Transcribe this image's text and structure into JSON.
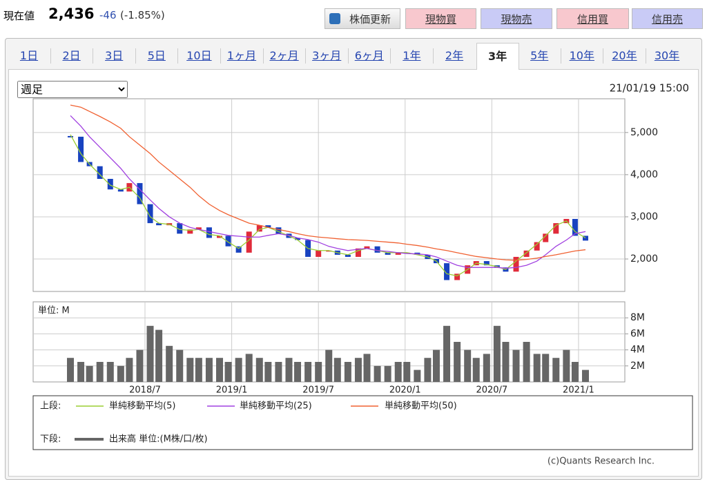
{
  "header": {
    "label": "現在値",
    "price": "2,436",
    "change": "-46",
    "change_pct": "(-1.85%)",
    "buttons": [
      "株価更新",
      "現物買",
      "現物売",
      "信用買",
      "信用売"
    ]
  },
  "tabs": {
    "items": [
      "1日",
      "2日",
      "3日",
      "5日",
      "10日",
      "1ヶ月",
      "2ヶ月",
      "3ヶ月",
      "6ヶ月",
      "1年",
      "2年",
      "3年",
      "5年",
      "10年",
      "20年",
      "30年"
    ],
    "active": 11
  },
  "select": "週足",
  "chart_data": {
    "type": "stock",
    "timestamp": "21/01/19 15:00",
    "credit": "(c)Quants Research Inc.",
    "xlim": [
      2017.855,
      2021.267
    ],
    "xticks": [
      {
        "value": 2018.5,
        "label": "2018/7"
      },
      {
        "value": 2019.0,
        "label": "2019/1"
      },
      {
        "value": 2019.5,
        "label": "2019/7"
      },
      {
        "value": 2020.0,
        "label": "2020/1"
      },
      {
        "value": 2020.5,
        "label": "2020/7"
      },
      {
        "value": 2021.0,
        "label": "2021/1"
      }
    ],
    "x": [
      2018.07,
      2018.13,
      2018.18,
      2018.24,
      2018.3,
      2018.36,
      2018.41,
      2018.47,
      2018.53,
      2018.58,
      2018.64,
      2018.7,
      2018.76,
      2018.81,
      2018.87,
      2018.93,
      2018.98,
      2019.04,
      2019.1,
      2019.16,
      2019.21,
      2019.27,
      2019.33,
      2019.38,
      2019.44,
      2019.5,
      2019.56,
      2019.61,
      2019.67,
      2019.73,
      2019.78,
      2019.84,
      2019.9,
      2019.96,
      2020.01,
      2020.07,
      2020.13,
      2020.18,
      2020.24,
      2020.3,
      2020.36,
      2020.41,
      2020.47,
      2020.53,
      2020.58,
      2020.64,
      2020.7,
      2020.76,
      2020.81,
      2020.87,
      2020.93,
      2020.98,
      2021.04
    ],
    "price": {
      "legend_label": "上段:",
      "ylim": [
        1230,
        5800
      ],
      "up_color": "#e02b3a",
      "down_color": "#1842c0",
      "yticks": [
        {
          "value": 2000,
          "label": "2,000"
        },
        {
          "value": 3000,
          "label": "3,000"
        },
        {
          "value": 4000,
          "label": "4,000"
        },
        {
          "value": 5000,
          "label": "5,000"
        }
      ],
      "values": [
        4900,
        4300,
        4200,
        3900,
        3650,
        3600,
        3800,
        3300,
        2850,
        2800,
        2850,
        2600,
        2700,
        2750,
        2500,
        2550,
        2300,
        2150,
        2650,
        2800,
        2750,
        2600,
        2500,
        2450,
        2050,
        2200,
        2200,
        2100,
        2050,
        2250,
        2300,
        2150,
        2100,
        2150,
        2150,
        2100,
        2000,
        1900,
        1500,
        1650,
        1850,
        1950,
        1850,
        1800,
        1700,
        2050,
        2200,
        2400,
        2600,
        2850,
        2950,
        2550,
        2436
      ],
      "series": [
        {
          "name": "単純移動平均(5)",
          "color": "#9acd32",
          "values": [
            4950,
            4500,
            4250,
            4000,
            3750,
            3650,
            3700,
            3450,
            3000,
            2850,
            2820,
            2700,
            2680,
            2700,
            2580,
            2550,
            2400,
            2250,
            2450,
            2700,
            2750,
            2650,
            2550,
            2450,
            2250,
            2200,
            2200,
            2150,
            2100,
            2200,
            2250,
            2200,
            2150,
            2150,
            2150,
            2100,
            2050,
            1950,
            1650,
            1600,
            1750,
            1900,
            1870,
            1820,
            1750,
            1950,
            2150,
            2350,
            2550,
            2800,
            2900,
            2650,
            2500
          ]
        },
        {
          "name": "単純移動平均(25)",
          "color": "#a040e0",
          "values": [
            5400,
            5150,
            4900,
            4650,
            4400,
            4150,
            3900,
            3650,
            3400,
            3200,
            3000,
            2850,
            2750,
            2700,
            2650,
            2600,
            2560,
            2540,
            2520,
            2520,
            2560,
            2600,
            2560,
            2500,
            2460,
            2400,
            2300,
            2250,
            2200,
            2230,
            2250,
            2200,
            2180,
            2150,
            2130,
            2120,
            2100,
            2050,
            1950,
            1850,
            1800,
            1800,
            1800,
            1800,
            1780,
            1800,
            1850,
            1950,
            2100,
            2300,
            2450,
            2600,
            2650
          ]
        },
        {
          "name": "単純移動平均(50)",
          "color": "#f06030",
          "values": [
            5650,
            5600,
            5500,
            5380,
            5250,
            5100,
            4900,
            4700,
            4500,
            4300,
            4100,
            3900,
            3700,
            3500,
            3300,
            3150,
            3050,
            2950,
            2850,
            2800,
            2750,
            2700,
            2650,
            2600,
            2550,
            2520,
            2500,
            2480,
            2460,
            2450,
            2440,
            2420,
            2400,
            2380,
            2350,
            2320,
            2280,
            2240,
            2200,
            2150,
            2100,
            2060,
            2030,
            2000,
            1980,
            1970,
            1990,
            2020,
            2060,
            2100,
            2150,
            2190,
            2220
          ]
        }
      ]
    },
    "volume": {
      "unit_label": "単位: M",
      "legend_label": "下段:",
      "ylim": [
        0,
        10
      ],
      "yticks": [
        {
          "value": 2,
          "label": "2M"
        },
        {
          "value": 4,
          "label": "4M"
        },
        {
          "value": 6,
          "label": "6M"
        },
        {
          "value": 8,
          "label": "8M"
        }
      ],
      "series": [
        {
          "name": "出来高 単位:(M株/口/枚)",
          "color": "#666666",
          "values": [
            3,
            2.5,
            2,
            2.5,
            2.5,
            2,
            3,
            4,
            7,
            6.5,
            4.5,
            4,
            3,
            3,
            3,
            3,
            2.5,
            3,
            3.5,
            3,
            2.5,
            2.5,
            3,
            2.5,
            2.5,
            2.5,
            4,
            3,
            2.5,
            3,
            3.5,
            2,
            2,
            2.5,
            2.5,
            1.5,
            3,
            4,
            7,
            5,
            4,
            3,
            3.5,
            7,
            5,
            4,
            5,
            3.5,
            3.5,
            3,
            4,
            2.5,
            1.5
          ]
        }
      ]
    }
  }
}
